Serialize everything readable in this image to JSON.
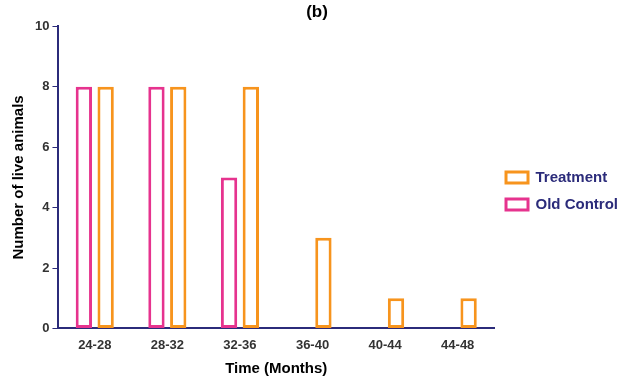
{
  "chart_data": {
    "type": "bar",
    "title": "(b)",
    "x_label": "Time (Months)",
    "y_label": "Number of live animals",
    "categories": [
      "24-28",
      "28-32",
      "32-36",
      "36-40",
      "40-44",
      "44-48"
    ],
    "series": [
      {
        "name": "Old Control",
        "color": "#e6338e",
        "values": [
          8,
          8,
          5,
          null,
          null,
          null
        ]
      },
      {
        "name": "Treatment",
        "color": "#f7941d",
        "values": [
          8,
          8,
          8,
          3,
          1,
          1
        ]
      }
    ],
    "ylim": [
      0,
      10
    ],
    "yticks": [
      0,
      2,
      4,
      6,
      8,
      10
    ],
    "grid": false,
    "legend": "right"
  }
}
